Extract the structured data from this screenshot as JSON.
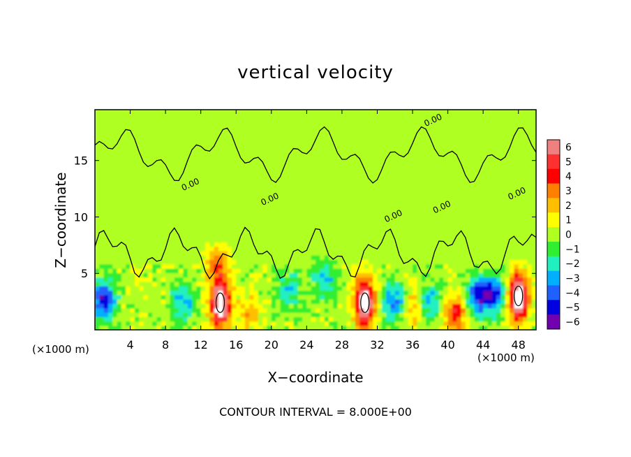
{
  "chart_data": {
    "type": "heatmap",
    "title": "vertical velocity",
    "xlabel": "X−coordinate",
    "ylabel": "Z−coordinate",
    "x_unit_left": "(×1000 m)",
    "x_unit_right": "(×1000 m)",
    "footer": "CONTOUR INTERVAL = 8.000E+00",
    "xlim": [
      0,
      50
    ],
    "ylim": [
      0,
      19.5
    ],
    "x_ticks": [
      "4",
      "8",
      "12",
      "16",
      "20",
      "24",
      "28",
      "32",
      "36",
      "40",
      "44",
      "48"
    ],
    "x_tick_values": [
      4,
      8,
      12,
      16,
      20,
      24,
      28,
      32,
      36,
      40,
      44,
      48
    ],
    "y_ticks": [
      "5",
      "10",
      "15"
    ],
    "y_tick_values": [
      5,
      10,
      15
    ],
    "contour_label": "0.00",
    "colorbar": {
      "labels": [
        "6",
        "5",
        "4",
        "3",
        "2",
        "1",
        "0",
        "−1",
        "−2",
        "−3",
        "−4",
        "−5",
        "−6"
      ],
      "values": [
        6,
        5,
        4,
        3,
        2,
        1,
        0,
        -1,
        -2,
        -3,
        -4,
        -5,
        -6
      ],
      "colors": [
        "#f08080",
        "#ff3030",
        "#ff0000",
        "#ff7f00",
        "#ffbf00",
        "#ffff00",
        "#b0ff20",
        "#30ee30",
        "#20f0c0",
        "#00b0ff",
        "#2060ff",
        "#0000e0",
        "#7000b0"
      ]
    },
    "features": [
      {
        "x": 14.2,
        "z": 2.4,
        "w": 8.5,
        "kind": "updraft"
      },
      {
        "x": 30.6,
        "z": 2.4,
        "w": 8.5,
        "kind": "updraft"
      },
      {
        "x": 48.0,
        "z": 3.0,
        "w": 8.5,
        "kind": "updraft"
      },
      {
        "x": 40.8,
        "z": 1.5,
        "w": 4.2,
        "kind": "updraft"
      },
      {
        "x": 13.9,
        "z": 5.8,
        "w": 3.0,
        "kind": "updraft"
      },
      {
        "x": 1.0,
        "z": 2.7,
        "w": -5.3,
        "kind": "downdraft"
      },
      {
        "x": 43.5,
        "z": 3.0,
        "w": -5.0,
        "kind": "downdraft"
      },
      {
        "x": 45.3,
        "z": 3.2,
        "w": -4.3,
        "kind": "downdraft"
      },
      {
        "x": 34.0,
        "z": 2.5,
        "w": -3.8,
        "kind": "downdraft"
      },
      {
        "x": 10.0,
        "z": 2.5,
        "w": -3.0,
        "kind": "downdraft"
      },
      {
        "x": 22.0,
        "z": 3.5,
        "w": -2.5,
        "kind": "downdraft"
      },
      {
        "x": 26.0,
        "z": 4.5,
        "w": -2.5,
        "kind": "downdraft"
      },
      {
        "x": 38.0,
        "z": 2.5,
        "w": -3.0,
        "kind": "downdraft"
      },
      {
        "x": 17.5,
        "z": 1.5,
        "w": 2.0,
        "kind": "updraft"
      },
      {
        "x": 36.0,
        "z": 2.0,
        "w": 2.5,
        "kind": "updraft"
      }
    ]
  }
}
